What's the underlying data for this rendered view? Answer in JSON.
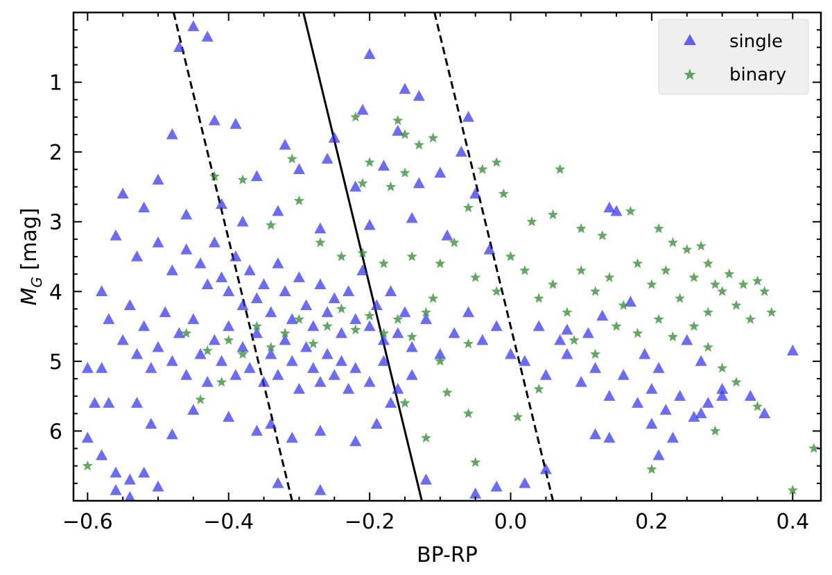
{
  "chart_data": {
    "type": "scatter",
    "xlabel": "BP-RP",
    "ylabel": "M_G [mag]",
    "ylabel_main": "M",
    "ylabel_sub": "G",
    "ylabel_unit": " [mag]",
    "xlim": [
      -0.62,
      0.44
    ],
    "ylim": [
      7.0,
      0.0
    ],
    "y_inverted": true,
    "grid": false,
    "legend_position": "top-right",
    "xticks": [
      -0.6,
      -0.4,
      -0.2,
      0.0,
      0.2,
      0.4
    ],
    "xtick_labels": [
      "−0.6",
      "−0.4",
      "−0.2",
      "0.0",
      "0.2",
      "0.4"
    ],
    "yticks": [
      1,
      2,
      3,
      4,
      5,
      6
    ],
    "ytick_labels": [
      "1",
      "2",
      "3",
      "4",
      "5",
      "6"
    ],
    "colors": {
      "single": "#3333ee",
      "binary": "#2e8b2e",
      "lines": "#000000"
    },
    "series": [
      {
        "name": "single",
        "marker": "triangle",
        "points": [
          [
            -0.45,
            0.2
          ],
          [
            -0.43,
            0.35
          ],
          [
            -0.47,
            0.5
          ],
          [
            -0.2,
            0.6
          ],
          [
            -0.15,
            1.1
          ],
          [
            -0.13,
            1.2
          ],
          [
            -0.21,
            1.4
          ],
          [
            -0.06,
            1.5
          ],
          [
            -0.42,
            1.55
          ],
          [
            -0.39,
            1.6
          ],
          [
            -0.48,
            1.75
          ],
          [
            -0.16,
            1.7
          ],
          [
            -0.32,
            1.9
          ],
          [
            -0.25,
            1.8
          ],
          [
            -0.26,
            2.1
          ],
          [
            -0.18,
            2.2
          ],
          [
            -0.1,
            2.3
          ],
          [
            -0.07,
            2.0
          ],
          [
            -0.3,
            2.25
          ],
          [
            -0.5,
            2.4
          ],
          [
            -0.36,
            2.35
          ],
          [
            -0.22,
            2.5
          ],
          [
            -0.13,
            2.45
          ],
          [
            -0.05,
            2.6
          ],
          [
            -0.55,
            2.6
          ],
          [
            -0.52,
            2.8
          ],
          [
            -0.46,
            2.9
          ],
          [
            -0.41,
            2.75
          ],
          [
            -0.38,
            3.0
          ],
          [
            -0.33,
            2.85
          ],
          [
            -0.27,
            3.1
          ],
          [
            -0.2,
            3.05
          ],
          [
            -0.14,
            2.95
          ],
          [
            -0.09,
            3.2
          ],
          [
            -0.03,
            3.4
          ],
          [
            0.14,
            2.8
          ],
          [
            0.15,
            2.85
          ],
          [
            -0.56,
            3.2
          ],
          [
            -0.53,
            3.5
          ],
          [
            -0.5,
            3.3
          ],
          [
            -0.48,
            3.7
          ],
          [
            -0.46,
            3.4
          ],
          [
            -0.44,
            3.6
          ],
          [
            -0.43,
            3.9
          ],
          [
            -0.42,
            3.3
          ],
          [
            -0.41,
            3.8
          ],
          [
            -0.4,
            4.0
          ],
          [
            -0.39,
            3.5
          ],
          [
            -0.38,
            4.2
          ],
          [
            -0.37,
            3.7
          ],
          [
            -0.36,
            4.1
          ],
          [
            -0.35,
            3.9
          ],
          [
            -0.34,
            4.3
          ],
          [
            -0.33,
            3.6
          ],
          [
            -0.32,
            4.0
          ],
          [
            -0.31,
            4.4
          ],
          [
            -0.3,
            3.8
          ],
          [
            -0.29,
            4.2
          ],
          [
            -0.28,
            4.5
          ],
          [
            -0.27,
            3.9
          ],
          [
            -0.26,
            4.3
          ],
          [
            -0.25,
            4.1
          ],
          [
            -0.24,
            4.6
          ],
          [
            -0.23,
            4.0
          ],
          [
            -0.22,
            4.4
          ],
          [
            -0.21,
            3.7
          ],
          [
            -0.2,
            4.5
          ],
          [
            -0.19,
            4.2
          ],
          [
            -0.18,
            4.7
          ],
          [
            -0.17,
            4.0
          ],
          [
            -0.16,
            4.6
          ],
          [
            -0.15,
            4.3
          ],
          [
            -0.14,
            4.8
          ],
          [
            -0.12,
            4.4
          ],
          [
            -0.1,
            4.9
          ],
          [
            -0.08,
            4.6
          ],
          [
            -0.06,
            4.3
          ],
          [
            -0.04,
            4.7
          ],
          [
            -0.02,
            4.5
          ],
          [
            0.0,
            4.9
          ],
          [
            -0.58,
            4.0
          ],
          [
            -0.57,
            4.4
          ],
          [
            -0.55,
            4.7
          ],
          [
            -0.54,
            4.2
          ],
          [
            -0.53,
            4.9
          ],
          [
            -0.52,
            4.5
          ],
          [
            -0.51,
            5.1
          ],
          [
            -0.5,
            4.8
          ],
          [
            -0.49,
            4.3
          ],
          [
            -0.48,
            5.0
          ],
          [
            -0.47,
            4.6
          ],
          [
            -0.46,
            5.2
          ],
          [
            -0.45,
            4.4
          ],
          [
            -0.44,
            4.9
          ],
          [
            -0.43,
            5.3
          ],
          [
            -0.42,
            4.7
          ],
          [
            -0.41,
            5.0
          ],
          [
            -0.4,
            4.5
          ],
          [
            -0.39,
            5.2
          ],
          [
            -0.38,
            4.8
          ],
          [
            -0.37,
            5.1
          ],
          [
            -0.36,
            4.6
          ],
          [
            -0.35,
            5.3
          ],
          [
            -0.34,
            4.9
          ],
          [
            -0.33,
            5.2
          ],
          [
            -0.32,
            4.7
          ],
          [
            -0.31,
            5.0
          ],
          [
            -0.3,
            5.4
          ],
          [
            -0.29,
            4.8
          ],
          [
            -0.28,
            5.1
          ],
          [
            -0.27,
            5.3
          ],
          [
            -0.26,
            4.9
          ],
          [
            -0.25,
            5.2
          ],
          [
            -0.24,
            5.0
          ],
          [
            -0.23,
            5.4
          ],
          [
            -0.22,
            5.1
          ],
          [
            -0.2,
            5.3
          ],
          [
            -0.18,
            5.0
          ],
          [
            -0.16,
            5.4
          ],
          [
            -0.14,
            5.2
          ],
          [
            0.02,
            5.0
          ],
          [
            0.05,
            5.2
          ],
          [
            0.08,
            4.9
          ],
          [
            0.1,
            5.3
          ],
          [
            0.12,
            5.1
          ],
          [
            0.14,
            5.5
          ],
          [
            0.16,
            5.2
          ],
          [
            0.18,
            5.6
          ],
          [
            0.2,
            5.4
          ],
          [
            0.22,
            5.7
          ],
          [
            0.24,
            5.5
          ],
          [
            0.26,
            5.8
          ],
          [
            0.28,
            5.6
          ],
          [
            0.3,
            5.4
          ],
          [
            0.34,
            5.5
          ],
          [
            0.36,
            5.75
          ],
          [
            0.4,
            4.85
          ],
          [
            0.19,
            4.9
          ],
          [
            0.21,
            5.1
          ],
          [
            0.25,
            4.7
          ],
          [
            0.27,
            5.0
          ],
          [
            0.04,
            4.5
          ],
          [
            0.07,
            4.7
          ],
          [
            0.11,
            4.6
          ],
          [
            -0.58,
            5.1
          ],
          [
            -0.6,
            5.1
          ],
          [
            -0.57,
            5.6
          ],
          [
            -0.59,
            5.6
          ],
          [
            -0.53,
            5.6
          ],
          [
            -0.51,
            5.9
          ],
          [
            -0.48,
            6.05
          ],
          [
            -0.45,
            5.7
          ],
          [
            -0.4,
            5.8
          ],
          [
            -0.36,
            6.0
          ],
          [
            -0.34,
            5.9
          ],
          [
            -0.31,
            6.1
          ],
          [
            -0.27,
            6.0
          ],
          [
            -0.22,
            6.15
          ],
          [
            -0.19,
            5.9
          ],
          [
            -0.17,
            5.6
          ],
          [
            -0.6,
            6.1
          ],
          [
            -0.58,
            6.35
          ],
          [
            -0.56,
            6.6
          ],
          [
            -0.54,
            6.7
          ],
          [
            -0.52,
            6.6
          ],
          [
            -0.5,
            6.8
          ],
          [
            -0.56,
            6.85
          ],
          [
            -0.54,
            6.95
          ],
          [
            -0.33,
            6.75
          ],
          [
            -0.27,
            6.85
          ],
          [
            -0.12,
            6.7
          ],
          [
            -0.05,
            6.9
          ],
          [
            -0.02,
            6.8
          ],
          [
            0.02,
            6.75
          ],
          [
            0.05,
            6.55
          ],
          [
            0.12,
            6.05
          ],
          [
            0.14,
            6.1
          ],
          [
            0.2,
            5.9
          ],
          [
            0.21,
            6.35
          ],
          [
            0.23,
            6.1
          ],
          [
            0.27,
            5.75
          ],
          [
            0.3,
            5.5
          ],
          [
            0.08,
            4.55
          ],
          [
            0.13,
            4.35
          ],
          [
            0.17,
            4.15
          ]
        ]
      },
      {
        "name": "binary",
        "marker": "star",
        "points": [
          [
            -0.22,
            1.5
          ],
          [
            -0.16,
            1.55
          ],
          [
            -0.15,
            1.75
          ],
          [
            -0.11,
            1.8
          ],
          [
            -0.13,
            1.9
          ],
          [
            -0.31,
            2.1
          ],
          [
            -0.2,
            2.15
          ],
          [
            -0.15,
            2.3
          ],
          [
            -0.04,
            2.25
          ],
          [
            -0.02,
            2.15
          ],
          [
            0.07,
            2.25
          ],
          [
            -0.3,
            2.7
          ],
          [
            -0.21,
            2.45
          ],
          [
            -0.17,
            2.5
          ],
          [
            -0.06,
            2.8
          ],
          [
            -0.01,
            2.6
          ],
          [
            0.03,
            3.0
          ],
          [
            0.06,
            2.9
          ],
          [
            0.1,
            3.1
          ],
          [
            0.13,
            3.2
          ],
          [
            0.17,
            2.85
          ],
          [
            0.21,
            3.1
          ],
          [
            0.23,
            3.3
          ],
          [
            0.25,
            3.4
          ],
          [
            0.27,
            3.35
          ],
          [
            0.28,
            3.6
          ],
          [
            0.29,
            3.9
          ],
          [
            0.31,
            3.75
          ],
          [
            0.33,
            3.9
          ],
          [
            0.35,
            3.85
          ],
          [
            0.37,
            4.3
          ],
          [
            0.36,
            4.0
          ],
          [
            0.34,
            4.4
          ],
          [
            -0.14,
            3.5
          ],
          [
            -0.1,
            3.6
          ],
          [
            -0.08,
            3.3
          ],
          [
            -0.05,
            3.8
          ],
          [
            -0.02,
            4.0
          ],
          [
            0.0,
            3.5
          ],
          [
            0.02,
            3.7
          ],
          [
            0.04,
            4.1
          ],
          [
            0.06,
            3.9
          ],
          [
            0.08,
            4.3
          ],
          [
            0.1,
            3.7
          ],
          [
            0.12,
            4.0
          ],
          [
            0.14,
            3.8
          ],
          [
            0.16,
            4.2
          ],
          [
            0.18,
            3.6
          ],
          [
            0.2,
            3.9
          ],
          [
            0.22,
            3.7
          ],
          [
            0.24,
            4.1
          ],
          [
            0.26,
            3.8
          ],
          [
            0.28,
            4.3
          ],
          [
            0.3,
            4.0
          ],
          [
            0.32,
            4.2
          ],
          [
            0.15,
            4.5
          ],
          [
            0.18,
            4.6
          ],
          [
            0.21,
            4.4
          ],
          [
            0.23,
            4.65
          ],
          [
            0.26,
            4.5
          ],
          [
            0.28,
            4.8
          ],
          [
            0.3,
            5.1
          ],
          [
            0.32,
            5.3
          ],
          [
            0.35,
            5.65
          ],
          [
            0.43,
            6.25
          ],
          [
            0.4,
            6.85
          ],
          [
            0.29,
            6.0
          ],
          [
            0.2,
            6.55
          ],
          [
            0.12,
            4.9
          ],
          [
            0.09,
            4.7
          ],
          [
            -0.06,
            4.75
          ],
          [
            -0.1,
            5.0
          ],
          [
            -0.15,
            5.6
          ],
          [
            -0.09,
            5.45
          ],
          [
            -0.06,
            5.75
          ],
          [
            -0.12,
            6.1
          ],
          [
            -0.05,
            6.45
          ],
          [
            -0.6,
            6.5
          ],
          [
            -0.44,
            5.55
          ],
          [
            -0.41,
            5.3
          ],
          [
            -0.4,
            4.7
          ],
          [
            -0.38,
            4.9
          ],
          [
            -0.36,
            4.5
          ],
          [
            -0.34,
            4.8
          ],
          [
            -0.32,
            4.6
          ],
          [
            -0.3,
            4.4
          ],
          [
            -0.28,
            4.75
          ],
          [
            -0.26,
            4.5
          ],
          [
            -0.24,
            4.25
          ],
          [
            -0.22,
            4.55
          ],
          [
            -0.2,
            4.35
          ],
          [
            -0.18,
            4.6
          ],
          [
            -0.16,
            4.4
          ],
          [
            -0.14,
            4.65
          ],
          [
            -0.12,
            4.3
          ],
          [
            -0.11,
            4.1
          ],
          [
            -0.38,
            2.4
          ],
          [
            -0.42,
            2.35
          ],
          [
            -0.34,
            3.05
          ],
          [
            -0.27,
            3.3
          ],
          [
            -0.24,
            3.5
          ],
          [
            -0.21,
            3.45
          ],
          [
            -0.18,
            3.6
          ],
          [
            -0.46,
            4.6
          ],
          [
            -0.43,
            4.85
          ],
          [
            0.01,
            5.8
          ],
          [
            0.04,
            5.4
          ]
        ]
      }
    ],
    "lines": [
      {
        "style": "dashed",
        "x": [
          -0.478,
          -0.31
        ],
        "y": [
          0.0,
          7.0
        ]
      },
      {
        "style": "solid",
        "x": [
          -0.294,
          -0.126
        ],
        "y": [
          0.0,
          7.0
        ]
      },
      {
        "style": "dashed",
        "x": [
          -0.108,
          0.06
        ],
        "y": [
          0.0,
          7.0
        ]
      }
    ]
  }
}
